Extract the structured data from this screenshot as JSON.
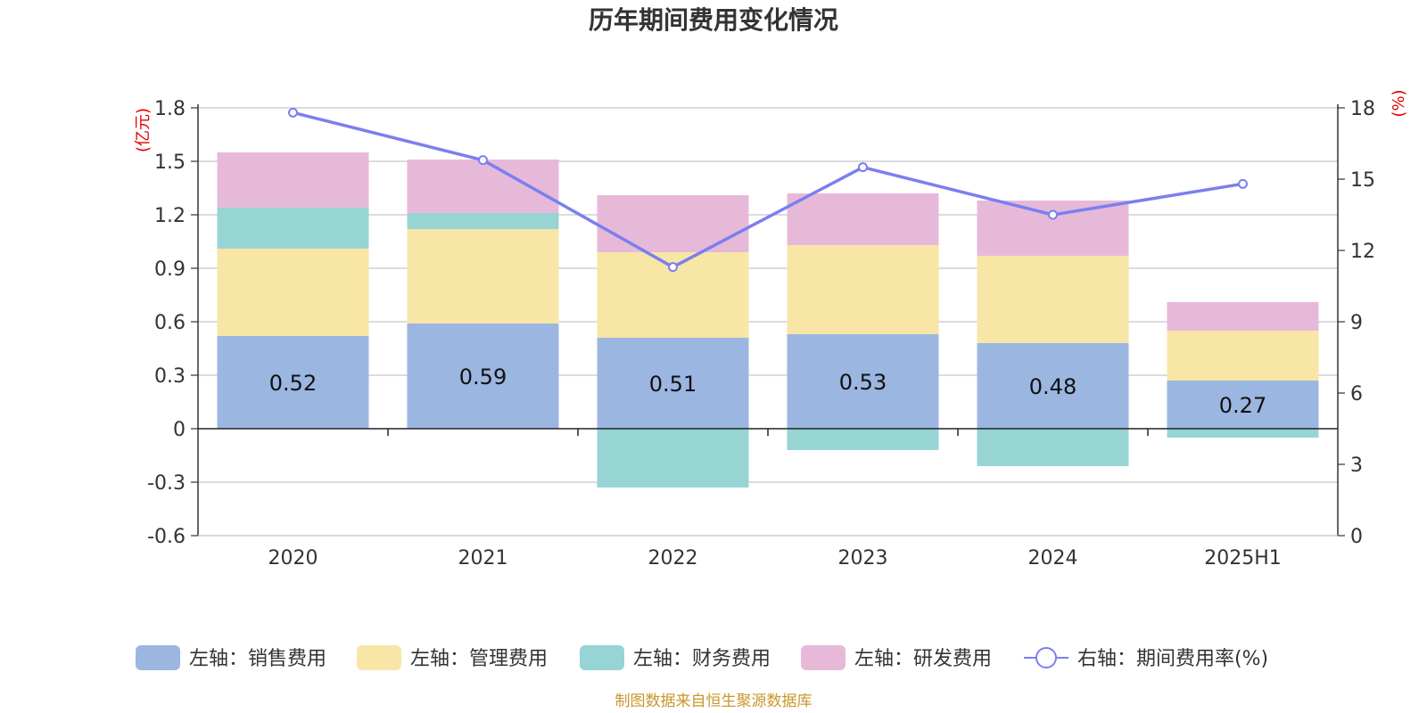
{
  "chart_data": {
    "type": "bar",
    "title": "历年期间费用变化情况",
    "categories": [
      "2020",
      "2021",
      "2022",
      "2023",
      "2024",
      "2025H1"
    ],
    "left_unit": "(亿元)",
    "right_unit": "(%)",
    "ylim_left": [
      -0.6,
      1.8
    ],
    "yticks_left": [
      -0.6,
      -0.3,
      0,
      0.3,
      0.6,
      0.9,
      1.2,
      1.5,
      1.8
    ],
    "ytick_labels_left": [
      "-0.6",
      "-0.3",
      "0",
      "0.3",
      "0.6",
      "0.9",
      "1.2",
      "1.5",
      "1.8"
    ],
    "ylim_right": [
      0,
      18
    ],
    "yticks_right": [
      0,
      3,
      6,
      9,
      12,
      15,
      18
    ],
    "ytick_labels_right": [
      "0",
      "3",
      "6",
      "9",
      "12",
      "15",
      "18"
    ],
    "grid": true,
    "stacked": true,
    "series": [
      {
        "name": "左轴：销售费用",
        "kind": "bar",
        "axis": "left",
        "color": "#9bb6e0",
        "values": [
          0.52,
          0.59,
          0.51,
          0.53,
          0.48,
          0.27
        ],
        "labels": [
          "0.52",
          "0.59",
          "0.51",
          "0.53",
          "0.48",
          "0.27"
        ]
      },
      {
        "name": "左轴：管理费用",
        "kind": "bar",
        "axis": "left",
        "color": "#f8e6a6",
        "values": [
          0.49,
          0.53,
          0.48,
          0.5,
          0.49,
          0.28
        ]
      },
      {
        "name": "左轴：财务费用",
        "kind": "bar",
        "axis": "left",
        "color": "#97d4d4",
        "values": [
          0.23,
          0.09,
          -0.33,
          -0.12,
          -0.21,
          -0.05
        ]
      },
      {
        "name": "左轴：研发费用",
        "kind": "bar",
        "axis": "left",
        "color": "#e7b9d9",
        "values": [
          0.31,
          0.3,
          0.32,
          0.29,
          0.31,
          0.16
        ]
      },
      {
        "name": "右轴：期间费用率(%)",
        "kind": "line",
        "axis": "right",
        "color": "#7b7ff0",
        "values": [
          17.8,
          15.8,
          11.3,
          15.5,
          13.5,
          14.8
        ]
      }
    ],
    "legend_position": "bottom"
  },
  "source_note": "制图数据来自恒生聚源数据库"
}
